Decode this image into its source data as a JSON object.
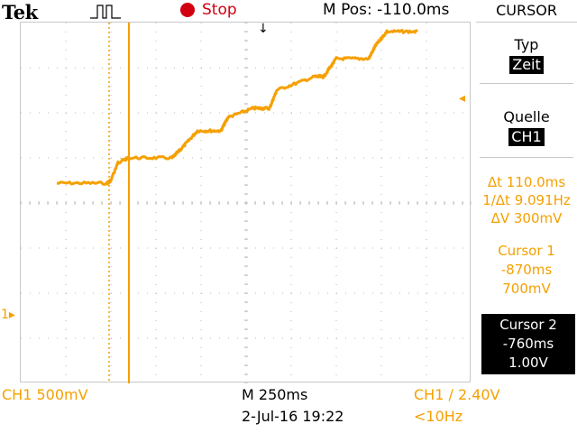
{
  "header": {
    "brand": "Tek",
    "run_state": "Stop",
    "m_pos": "M Pos: -110.0ms"
  },
  "menu": {
    "title": "CURSOR",
    "type_label": "Typ",
    "type_value": "Zeit",
    "source_label": "Quelle",
    "source_value": "CH1",
    "delta_t": "Δt 110.0ms",
    "inv_delta_t": "1/Δt 9.091Hz",
    "delta_v": "ΔV 300mV",
    "cursor1": {
      "label": "Cursor 1",
      "time": "-870ms",
      "volt": "700mV"
    },
    "cursor2": {
      "label": "Cursor 2",
      "time": "-760ms",
      "volt": "1.00V"
    }
  },
  "footer": {
    "ch1_scale": "CH1  500mV",
    "timebase": "M 250ms",
    "datetime": "2-Jul-16 19:22",
    "trigger": "CH1 ∕ 2.40V",
    "freq": "<10Hz"
  },
  "markers": {
    "ch1_ground": "1▸",
    "trigger_pos": "↓",
    "trigger_level": "◂"
  },
  "colors": {
    "trace": "#f5a000",
    "run_indicator": "#d00010",
    "grid": "#b8b8b8"
  },
  "trace": {
    "time_s": [
      -1.16,
      -0.88,
      -0.86,
      -0.82,
      -0.76,
      -0.52,
      -0.47,
      -0.38,
      -0.25,
      -0.21,
      -0.07,
      0.02,
      0.06,
      0.27,
      0.32,
      0.39,
      0.57,
      0.61,
      0.67,
      0.84
    ],
    "volts": [
      0.72,
      0.72,
      0.75,
      0.95,
      1.0,
      1.0,
      1.1,
      1.3,
      1.3,
      1.45,
      1.55,
      1.55,
      1.75,
      1.9,
      1.9,
      2.1,
      2.1,
      2.25,
      2.4,
      2.4
    ]
  }
}
